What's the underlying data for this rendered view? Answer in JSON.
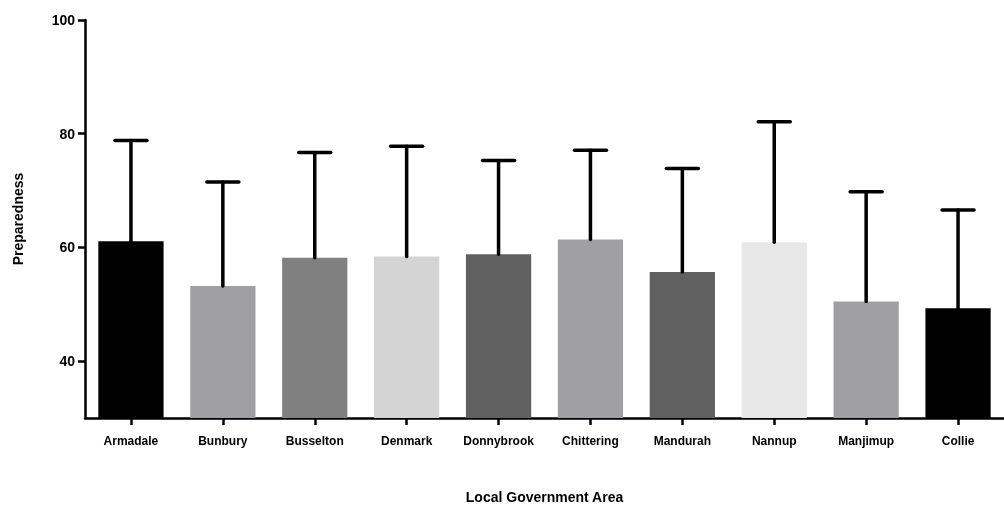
{
  "chart_data": {
    "type": "bar",
    "xlabel": "Local Government Area",
    "ylabel": "Preparedness",
    "categories": [
      "Armadale",
      "Bunbury",
      "Busselton",
      "Denmark",
      "Donnybrook",
      "Chittering",
      "Mandurah",
      "Nannup",
      "Manjimup",
      "Collie"
    ],
    "values": [
      61.1,
      53.2,
      58.2,
      58.4,
      58.8,
      61.4,
      55.7,
      60.9,
      50.5,
      49.3
    ],
    "colors": [
      "#000000",
      "#a0a0a4",
      "#808080",
      "#d4d4d4",
      "#606060",
      "#a0a0a4",
      "#606060",
      "#e8e8e8",
      "#a0a0a4",
      "#000000"
    ],
    "errors": [
      [
        61.1,
        78.8
      ],
      [
        53.2,
        71.5
      ],
      [
        58.2,
        76.7
      ],
      [
        58.4,
        77.8
      ],
      [
        58.8,
        75.3
      ],
      [
        61.4,
        77.1
      ],
      [
        55.7,
        73.9
      ],
      [
        60.9,
        82.1
      ],
      [
        50.5,
        69.8
      ],
      [
        49.3,
        66.6
      ]
    ],
    "ylim": [
      30,
      100
    ],
    "yticks": [
      40,
      60,
      80,
      100
    ],
    "grid": false
  }
}
